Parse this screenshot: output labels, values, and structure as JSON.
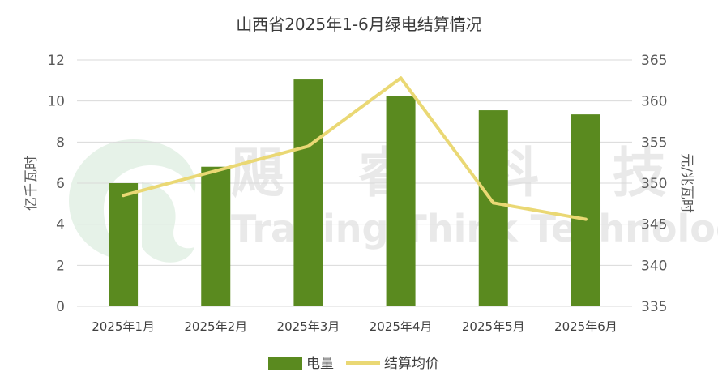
{
  "chart_data": {
    "type": "bar",
    "title": "山西省2025年1-6月绿电结算情况",
    "categories": [
      "2025年1月",
      "2025年2月",
      "2025年3月",
      "2025年4月",
      "2025年5月",
      "2025年6月"
    ],
    "series": [
      {
        "name": "电量",
        "type": "bar",
        "axis": "left",
        "color": "#5a8a1f",
        "values": [
          6.0,
          6.8,
          11.05,
          10.25,
          9.55,
          9.35
        ]
      },
      {
        "name": "结算均价",
        "type": "line",
        "axis": "right",
        "color": "#ead874",
        "values": [
          348.5,
          351.5,
          354.5,
          362.8,
          347.6,
          345.6
        ]
      }
    ],
    "ylabel": "亿千瓦时",
    "y2label": "元/兆瓦时",
    "ylim": [
      0,
      12
    ],
    "y2lim": [
      335,
      365
    ],
    "yticks": [
      0,
      2,
      4,
      6,
      8,
      10,
      12
    ],
    "y2ticks": [
      335,
      340,
      345,
      350,
      355,
      360,
      365
    ],
    "grid": true,
    "legend": "bottom"
  },
  "watermark": {
    "cn": "飓 睿 科 技",
    "en": "Trading Think Technology"
  },
  "colors": {
    "grid": "#d9d9d9",
    "watermark": "#e9e9e9",
    "watermark_logo": "#e3f1e6"
  }
}
